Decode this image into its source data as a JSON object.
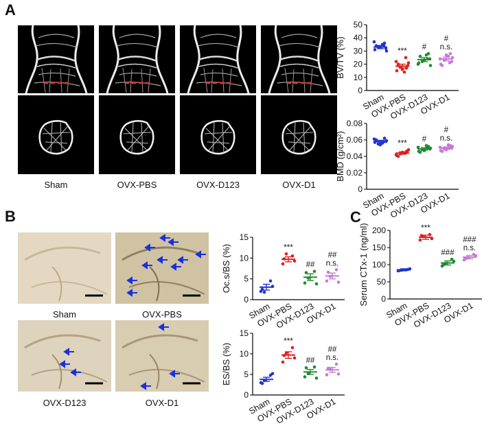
{
  "panels": {
    "A": "A",
    "B": "B",
    "C": "C"
  },
  "panel_a_captions": [
    "Sham",
    "OVX-PBS",
    "OVX-D123",
    "OVX-D1"
  ],
  "panel_b_captions": [
    "Sham",
    "OVX-PBS",
    "OVX-D123",
    "OVX-D1"
  ],
  "colors": {
    "sham": "#2233cc",
    "pbs": "#e01e1e",
    "d123": "#1f8a2e",
    "d1": "#c77ad6"
  },
  "chart_data": [
    {
      "id": "bvtv",
      "type": "scatter",
      "ylabel": "BV/TV (%)",
      "ylim": [
        0,
        50
      ],
      "yticks": [
        "0",
        "10",
        "20",
        "30",
        "40",
        "50"
      ],
      "categories": [
        "Sham",
        "OVX-PBS",
        "OVX-D123",
        "OVX-D1"
      ],
      "means": [
        33,
        18.5,
        23.5,
        24
      ],
      "sem": [
        1.2,
        1.5,
        1.5,
        1.4
      ],
      "points": [
        [
          31,
          36,
          33,
          30,
          34,
          35,
          32,
          37,
          33,
          34
        ],
        [
          15,
          17,
          18,
          21,
          20,
          14,
          19,
          22,
          16,
          25
        ],
        [
          21,
          28,
          22,
          19,
          26,
          27,
          24,
          20,
          23,
          24
        ],
        [
          20,
          28,
          23,
          25,
          19,
          26,
          22,
          24,
          27,
          21
        ]
      ],
      "annotations": [
        [
          "",
          ""
        ],
        [
          "***",
          ""
        ],
        [
          "#",
          ""
        ],
        [
          "#",
          "n.s."
        ]
      ]
    },
    {
      "id": "bmd",
      "type": "scatter",
      "ylabel": "BMD (g/cm²)",
      "ylim": [
        0,
        0.08
      ],
      "yticks": [
        "0",
        "0.02",
        "0.04",
        "0.06",
        "0.08"
      ],
      "categories": [
        "Sham",
        "OVX-PBS",
        "OVX-D123",
        "OVX-D1"
      ],
      "means": [
        0.058,
        0.044,
        0.049,
        0.05
      ],
      "sem": [
        0.0015,
        0.0015,
        0.0015,
        0.0015
      ],
      "points": [
        [
          0.057,
          0.062,
          0.055,
          0.059,
          0.06,
          0.056,
          0.058,
          0.061,
          0.054,
          0.058
        ],
        [
          0.041,
          0.046,
          0.043,
          0.048,
          0.04,
          0.044,
          0.047,
          0.042,
          0.045,
          0.044
        ],
        [
          0.046,
          0.052,
          0.048,
          0.05,
          0.045,
          0.053,
          0.049,
          0.051,
          0.047,
          0.05
        ],
        [
          0.047,
          0.053,
          0.049,
          0.052,
          0.046,
          0.054,
          0.05,
          0.051,
          0.048,
          0.05
        ]
      ],
      "annotations": [
        [
          "",
          ""
        ],
        [
          "***",
          ""
        ],
        [
          "#",
          ""
        ],
        [
          "#",
          "n.s."
        ]
      ]
    },
    {
      "id": "ocbs",
      "type": "scatter",
      "ylabel": "Oc.s/BS (%)",
      "ylim": [
        0,
        15
      ],
      "yticks": [
        "0",
        "5",
        "10",
        "15"
      ],
      "categories": [
        "Sham",
        "OVX-PBS",
        "OVX-D123",
        "OVX-D1"
      ],
      "means": [
        3,
        9.7,
        5.4,
        5.7
      ],
      "sem": [
        0.7,
        0.6,
        0.8,
        0.7
      ],
      "points": [
        [
          2,
          4.5,
          1.8,
          3.2,
          2.5
        ],
        [
          8.6,
          10.5,
          11,
          9.3,
          9.8
        ],
        [
          4,
          6.8,
          5.2,
          3.8,
          6.5
        ],
        [
          4.5,
          7.2,
          5.6,
          4.2,
          6.6
        ]
      ],
      "annotations": [
        [
          "",
          ""
        ],
        [
          "***",
          ""
        ],
        [
          "##",
          ""
        ],
        [
          "##",
          "n.s."
        ]
      ]
    },
    {
      "id": "esbs",
      "type": "scatter",
      "ylabel": "ES/BS (%)",
      "ylim": [
        0,
        15
      ],
      "yticks": [
        "0",
        "5",
        "10",
        "15"
      ],
      "categories": [
        "Sham",
        "OVX-PBS",
        "OVX-D123",
        "OVX-D1"
      ],
      "means": [
        3.8,
        9.7,
        5.6,
        6.1
      ],
      "sem": [
        0.5,
        0.8,
        0.6,
        0.6
      ],
      "points": [
        [
          3,
          4.8,
          3.5,
          5.2,
          2.8
        ],
        [
          8,
          11.5,
          10.2,
          9,
          9.6
        ],
        [
          4.4,
          6.8,
          5.2,
          4.1,
          6.6
        ],
        [
          4.9,
          7.5,
          6.2,
          5.1,
          6.5
        ]
      ],
      "annotations": [
        [
          "",
          ""
        ],
        [
          "***",
          ""
        ],
        [
          "##",
          ""
        ],
        [
          "##",
          "n.s."
        ]
      ]
    },
    {
      "id": "ctx",
      "type": "scatter",
      "ylabel": "Serum CTx-1 (ng/ml)",
      "ylim": [
        0,
        200
      ],
      "yticks": [
        "0",
        "50",
        "100",
        "150",
        "200"
      ],
      "categories": [
        "Sham",
        "OVX-PBS",
        "OVX-D123",
        "OVX-D1"
      ],
      "means": [
        85,
        180,
        105,
        122
      ],
      "sem": [
        3,
        6,
        6,
        5
      ],
      "points": [
        [
          82,
          86,
          84,
          88,
          83
        ],
        [
          172,
          188,
          182,
          176,
          185
        ],
        [
          96,
          116,
          104,
          110,
          100
        ],
        [
          114,
          130,
          121,
          126,
          118
        ]
      ],
      "annotations": [
        [
          "",
          ""
        ],
        [
          "***",
          ""
        ],
        [
          "###",
          ""
        ],
        [
          "###",
          "n.s."
        ]
      ]
    }
  ]
}
